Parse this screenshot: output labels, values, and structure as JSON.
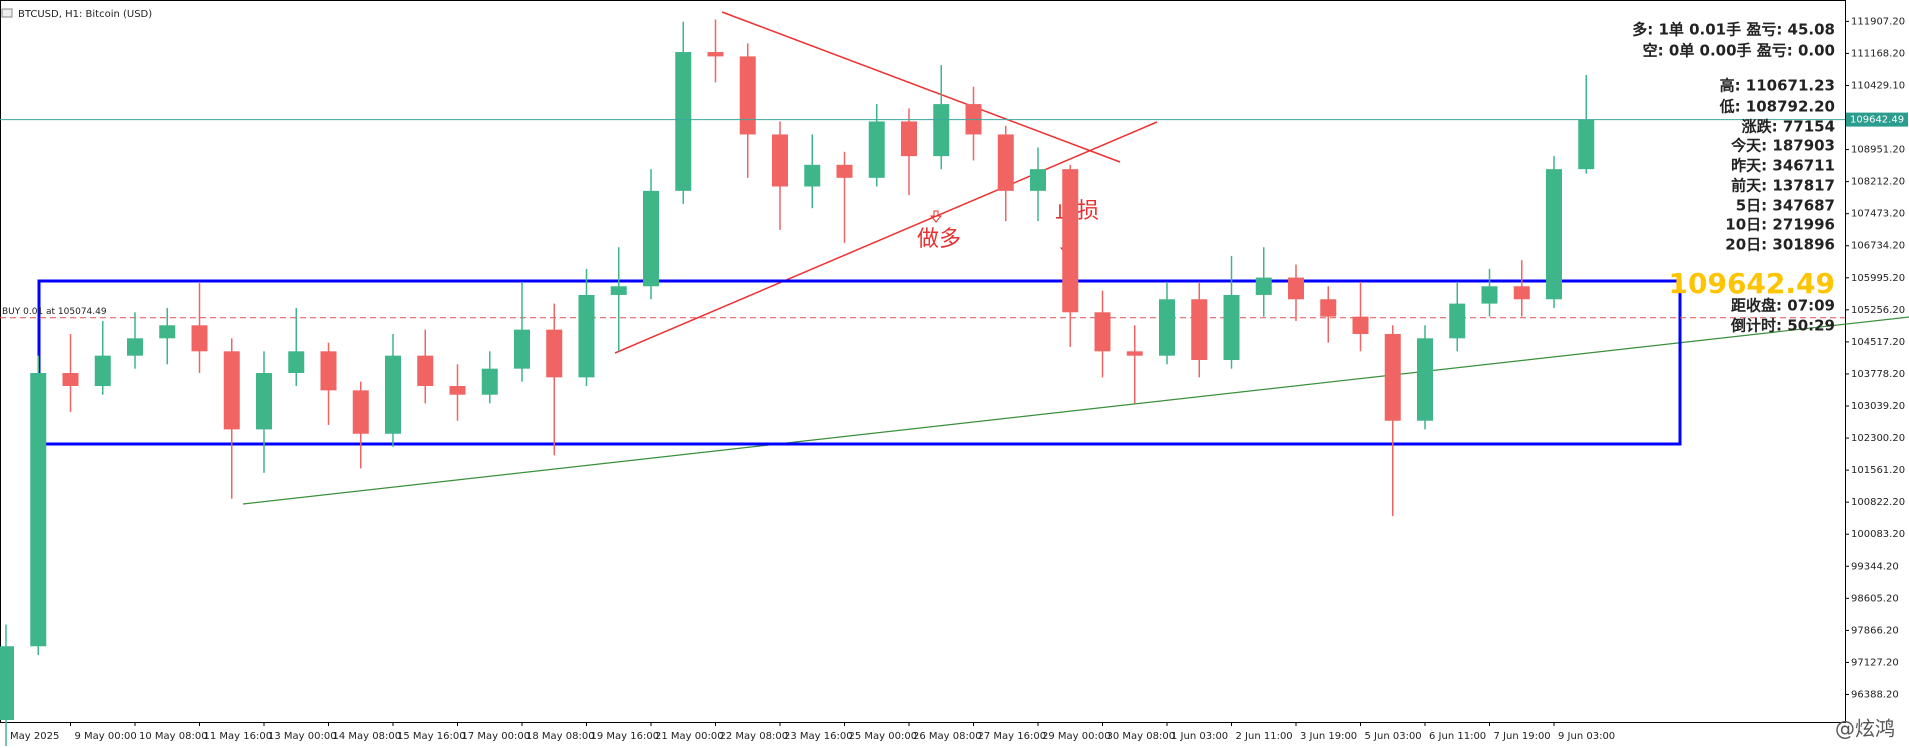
{
  "chart_data": {
    "type": "candlestick",
    "title": "BTCUSD, H1: Bitcoin (USD)",
    "categories": [
      "May 2025",
      null,
      "9 May 00:00",
      null,
      "10 May 08:00",
      null,
      "11 May 16:00",
      null,
      "13 May 00:00",
      null,
      "14 May 08:00",
      null,
      "15 May 16:00",
      null,
      "17 May 00:00",
      null,
      "18 May 08:00",
      null,
      "19 May 16:00",
      null,
      "21 May 00:00",
      null,
      "22 May 08:00",
      null,
      "23 May 16:00",
      null,
      "25 May 00:00",
      null,
      "26 May 08:00",
      null,
      "27 May 16:00",
      null,
      "29 May 00:00",
      null,
      "30 May 08:00",
      null,
      "1 Jun 03:00",
      null,
      "2 Jun 11:00",
      null,
      "3 Jun 19:00",
      null,
      "5 Jun 03:00",
      null,
      "6 Jun 11:00",
      null,
      "7 Jun 19:00",
      null,
      "9 Jun 03:00",
      null
    ],
    "open": [
      95800,
      97500,
      103800,
      103500,
      104200,
      104600,
      104900,
      104300,
      102500,
      103800,
      104300,
      103400,
      102400,
      104200,
      103500,
      103300,
      103900,
      104800,
      103700,
      105600,
      105800,
      108000,
      111200,
      111100,
      109300,
      108100,
      108600,
      108300,
      109600,
      108800,
      110000,
      109300,
      108000,
      108500,
      105200,
      104300,
      104200,
      105500,
      104100,
      105600,
      106000,
      105500,
      105100,
      104700,
      102700,
      104600,
      105400,
      105800,
      105500,
      108500
    ],
    "high": [
      98000,
      104200,
      104700,
      105000,
      105200,
      105300,
      105900,
      104600,
      104300,
      105300,
      104500,
      103600,
      104700,
      104800,
      104000,
      104300,
      105900,
      105400,
      106200,
      106700,
      108500,
      111900,
      111950,
      111400,
      109600,
      109300,
      108900,
      110000,
      109900,
      110900,
      110400,
      109500,
      109000,
      108600,
      105700,
      104900,
      105900,
      105900,
      106500,
      106700,
      106300,
      105800,
      105900,
      104900,
      104900,
      105900,
      106200,
      106400,
      108800,
      110671.23
    ],
    "low": [
      95200,
      97300,
      102900,
      103300,
      103900,
      104000,
      103800,
      100900,
      101500,
      103500,
      102600,
      101600,
      102100,
      103100,
      102700,
      103100,
      103600,
      101900,
      103500,
      104300,
      105500,
      107700,
      110500,
      108300,
      107100,
      107600,
      106800,
      108100,
      107900,
      108500,
      108700,
      107300,
      107300,
      104400,
      103700,
      103100,
      104000,
      103700,
      103900,
      105100,
      105000,
      104500,
      104300,
      100500,
      102500,
      104300,
      105100,
      105100,
      105300,
      108400
    ],
    "close": [
      97500,
      103800,
      103500,
      104200,
      104600,
      104900,
      104300,
      102500,
      103800,
      104300,
      103400,
      102400,
      104200,
      103500,
      103300,
      103900,
      104800,
      103700,
      105600,
      105800,
      108000,
      111200,
      111100,
      109300,
      108100,
      108600,
      108300,
      109600,
      108800,
      110000,
      109300,
      108000,
      108500,
      105200,
      104300,
      104200,
      105500,
      104100,
      105600,
      106000,
      105500,
      105100,
      104700,
      102700,
      104600,
      105400,
      105800,
      105500,
      108500,
      109642.49
    ],
    "up_color": "#3fb58a",
    "down_color": "#f06464",
    "ylim": [
      95800,
      112400
    ],
    "yticks": [
      {
        "value": 111907.2,
        "label": "111907.20"
      },
      {
        "value": 111168.2,
        "label": "111168.20"
      },
      {
        "value": 110429.1,
        "label": "110429.10"
      },
      {
        "value": 108951.2,
        "label": "108951.20"
      },
      {
        "value": 108212.2,
        "label": "108212.20"
      },
      {
        "value": 107473.2,
        "label": "107473.20"
      },
      {
        "value": 106734.2,
        "label": "106734.20"
      },
      {
        "value": 105995.2,
        "label": "105995.20"
      },
      {
        "value": 105256.2,
        "label": "105256.20"
      },
      {
        "value": 104517.2,
        "label": "104517.20"
      },
      {
        "value": 103778.2,
        "label": "103778.20"
      },
      {
        "value": 103039.2,
        "label": "103039.20"
      },
      {
        "value": 102300.2,
        "label": "102300.20"
      },
      {
        "value": 101561.2,
        "label": "101561.20"
      },
      {
        "value": 100822.2,
        "label": "100822.20"
      },
      {
        "value": 100083.2,
        "label": "100083.20"
      },
      {
        "value": 99344.2,
        "label": "99344.20"
      },
      {
        "value": 98605.2,
        "label": "98605.20"
      },
      {
        "value": 97866.2,
        "label": "97866.20"
      },
      {
        "value": 97127.2,
        "label": "97127.20"
      },
      {
        "value": 96388.2,
        "label": "96388.20"
      }
    ],
    "last_price": 109642.49,
    "buy_price": 105074.49,
    "buy_label": "BUY 0.01 at 105074.49",
    "annotations": [
      "做多",
      "止损"
    ],
    "grid": false
  },
  "panel": [
    {
      "text": "多: 1单 0.01手 盈亏: 45.08",
      "color": "#22c8e8"
    },
    {
      "text": "空: 0单 0.00手 盈亏: 0.00",
      "color": "#f5a623"
    },
    {
      "text": "高: 110671.23",
      "color": "#8fe08f"
    },
    {
      "text": "低: 108792.20",
      "color": "#f4a6b0"
    },
    {
      "text": "涨跌: 77154",
      "color": "#2e9e7a"
    },
    {
      "text": "今天: 187903",
      "color": "#f4a6b0"
    },
    {
      "text": "昨天: 346711",
      "color": "#9fe6e6"
    },
    {
      "text": "前天: 137817",
      "color": "#e020e0"
    },
    {
      "text": "5日: 347687",
      "color": "#f5a623"
    },
    {
      "text": "10日: 271996",
      "color": "#22cc22"
    },
    {
      "text": "20日: 301896",
      "color": "#e01010"
    }
  ],
  "countdown": [
    {
      "text": "距收盘: 07:09",
      "color": "#f5deb0"
    },
    {
      "text": "倒计时: 50:29",
      "color": "#9be36a"
    }
  ],
  "watermark": "@炫鸿"
}
